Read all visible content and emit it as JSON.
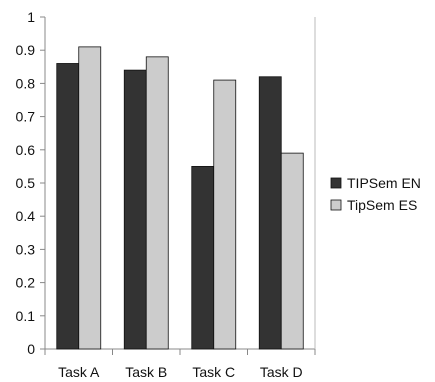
{
  "chart_data": {
    "type": "bar",
    "title": "",
    "xlabel": "",
    "ylabel": "",
    "categories": [
      "Task A",
      "Task B",
      "Task C",
      "Task D"
    ],
    "ylim": [
      0,
      1
    ],
    "yticks": [
      0,
      0.1,
      0.2,
      0.3,
      0.4,
      0.5,
      0.6,
      0.7,
      0.8,
      0.9,
      1
    ],
    "ytick_labels": [
      "0",
      "0.1",
      "0.2",
      "0.3",
      "0.4",
      "0.5",
      "0.6",
      "0.7",
      "0.8",
      "0.9",
      "1"
    ],
    "grid": false,
    "legend_position": "right",
    "series": [
      {
        "name": "TIPSem EN",
        "color": "#333333",
        "values": [
          0.86,
          0.84,
          0.55,
          0.82
        ]
      },
      {
        "name": "TipSem ES",
        "color": "#cccccc",
        "values": [
          0.91,
          0.88,
          0.81,
          0.59
        ]
      }
    ]
  }
}
